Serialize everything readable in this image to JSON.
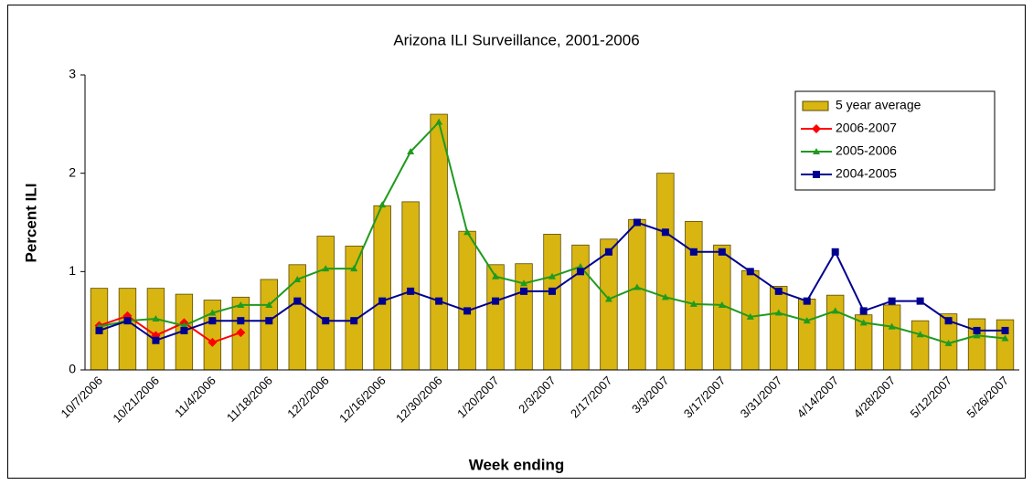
{
  "chart_data": {
    "type": "combo",
    "title": "Arizona ILI Surveillance, 2001-2006",
    "x_label": "Week ending",
    "y_label": "Percent ILI",
    "categories": [
      "10/7/2006",
      null,
      "10/21/2006",
      null,
      "11/4/2006",
      null,
      "11/18/2006",
      null,
      "12/2/2006",
      null,
      "12/16/2006",
      null,
      "12/30/2006",
      null,
      "1/20/2007",
      null,
      "2/3/2007",
      null,
      "2/17/2007",
      null,
      "3/3/2007",
      null,
      "3/17/2007",
      null,
      "3/31/2007",
      null,
      "4/14/2007",
      null,
      "4/28/2007",
      null,
      "5/12/2007",
      null,
      "5/26/2007"
    ],
    "ylim": [
      0,
      3
    ],
    "yticks": [
      0,
      1,
      2,
      3
    ],
    "legend": "top-right",
    "series": [
      {
        "name": "5 year average",
        "type": "bar",
        "color": "#d8b511",
        "values": [
          0.83,
          0.83,
          0.83,
          0.77,
          0.71,
          0.74,
          0.92,
          1.07,
          1.36,
          1.26,
          1.67,
          1.71,
          2.6,
          1.41,
          1.07,
          1.08,
          1.38,
          1.27,
          1.33,
          1.53,
          2.0,
          1.51,
          1.27,
          1.01,
          0.85,
          0.72,
          0.76,
          0.56,
          0.66,
          0.5,
          0.57,
          0.52,
          0.51
        ]
      },
      {
        "name": "2006-2007",
        "type": "line",
        "marker": "diamond",
        "color": "#ff0000",
        "values": [
          0.45,
          0.55,
          0.35,
          0.48,
          0.28,
          0.38,
          null,
          null,
          null,
          null,
          null,
          null,
          null,
          null,
          null,
          null,
          null,
          null,
          null,
          null,
          null,
          null,
          null,
          null,
          null,
          null,
          null,
          null,
          null,
          null,
          null,
          null,
          null
        ]
      },
      {
        "name": "2005-2006",
        "type": "line",
        "marker": "triangle",
        "color": "#1f9a1f",
        "values": [
          0.44,
          0.5,
          0.52,
          0.45,
          0.58,
          0.66,
          0.66,
          0.92,
          1.03,
          1.03,
          1.68,
          2.22,
          2.52,
          1.4,
          0.95,
          0.88,
          0.95,
          1.05,
          0.72,
          0.84,
          0.74,
          0.67,
          0.66,
          0.54,
          0.58,
          0.5,
          0.6,
          0.48,
          0.44,
          0.36,
          0.27,
          0.35,
          0.32
        ]
      },
      {
        "name": "2004-2005",
        "type": "line",
        "marker": "square",
        "color": "#000090",
        "values": [
          0.4,
          0.5,
          0.3,
          0.4,
          0.5,
          0.5,
          0.5,
          0.7,
          0.5,
          0.5,
          0.7,
          0.8,
          0.7,
          0.6,
          0.7,
          0.8,
          0.8,
          1.0,
          1.2,
          1.5,
          1.4,
          1.2,
          1.2,
          1.0,
          0.8,
          0.7,
          1.2,
          0.6,
          0.7,
          0.7,
          0.5,
          0.4,
          0.4
        ]
      }
    ]
  }
}
